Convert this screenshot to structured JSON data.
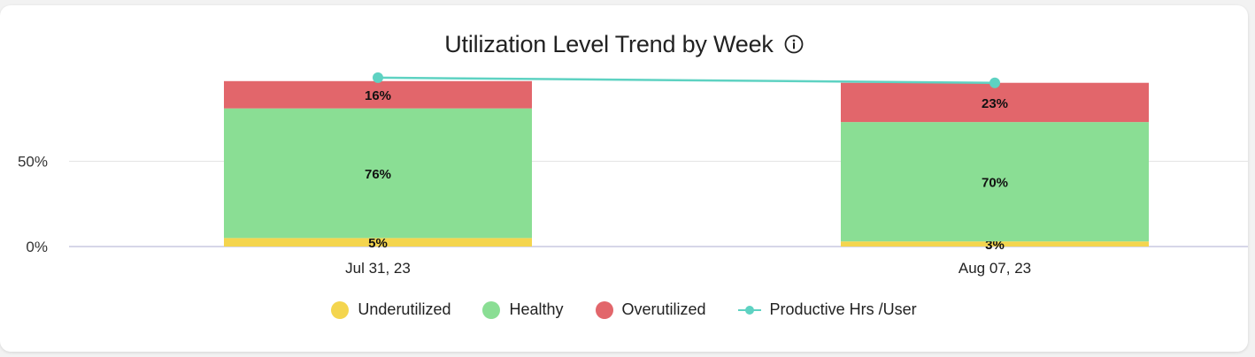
{
  "title": "Utilization Level Trend by Week",
  "chart_data": {
    "type": "bar",
    "stacked": true,
    "categories": [
      "Jul 31, 23",
      "Aug 07, 23"
    ],
    "series": [
      {
        "name": "Underutilized",
        "values": [
          5,
          3
        ],
        "color": "#f4d54e",
        "labels": [
          "5%",
          "3%"
        ]
      },
      {
        "name": "Healthy",
        "values": [
          76,
          70
        ],
        "color": "#8ade94",
        "labels": [
          "76%",
          "70%"
        ]
      },
      {
        "name": "Overutilized",
        "values": [
          16,
          23
        ],
        "color": "#e2666b",
        "labels": [
          "16%",
          "23%"
        ]
      }
    ],
    "line_series": {
      "name": "Productive Hrs /User",
      "color": "#5ed2c2",
      "values": [
        99,
        96
      ]
    },
    "y_ticks": [
      "0%",
      "50%"
    ],
    "y_tick_values": [
      0,
      50
    ],
    "ylim": [
      0,
      100
    ],
    "grid": true,
    "legend_position": "bottom"
  }
}
